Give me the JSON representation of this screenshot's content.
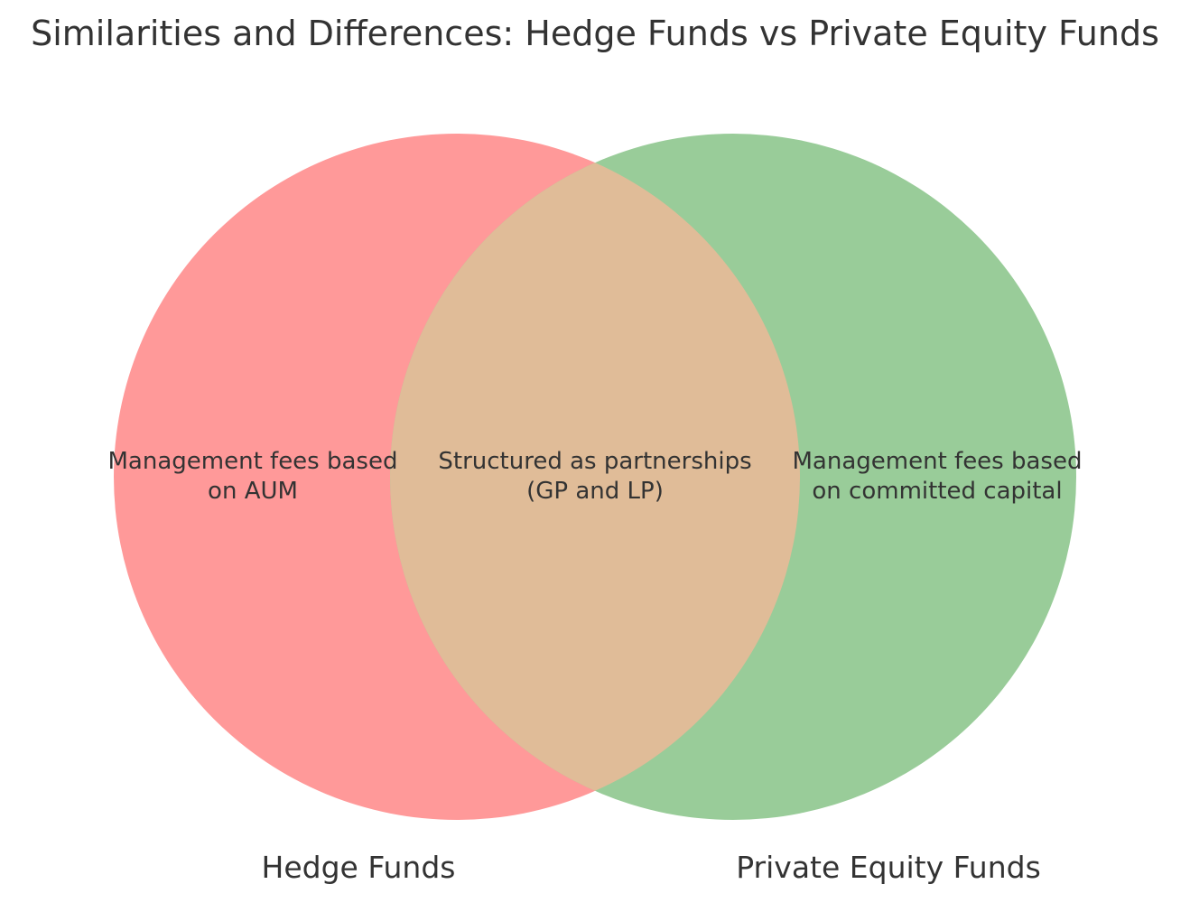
{
  "title": "Similarities and Differences: Hedge Funds vs Private Equity Funds",
  "sets": {
    "left": {
      "label": "Hedge Funds",
      "color": "#ff9999"
    },
    "right": {
      "label": "Private Equity Funds",
      "color": "#99cc99"
    },
    "overlap_color": "#e0bc98"
  },
  "regions": {
    "left_only": {
      "line1": "Management fees based",
      "line2": "on AUM"
    },
    "both": {
      "line1": "Structured as partnerships",
      "line2": "(GP and LP)"
    },
    "right_only": {
      "line1": "Management fees based",
      "line2": "on committed capital"
    }
  }
}
